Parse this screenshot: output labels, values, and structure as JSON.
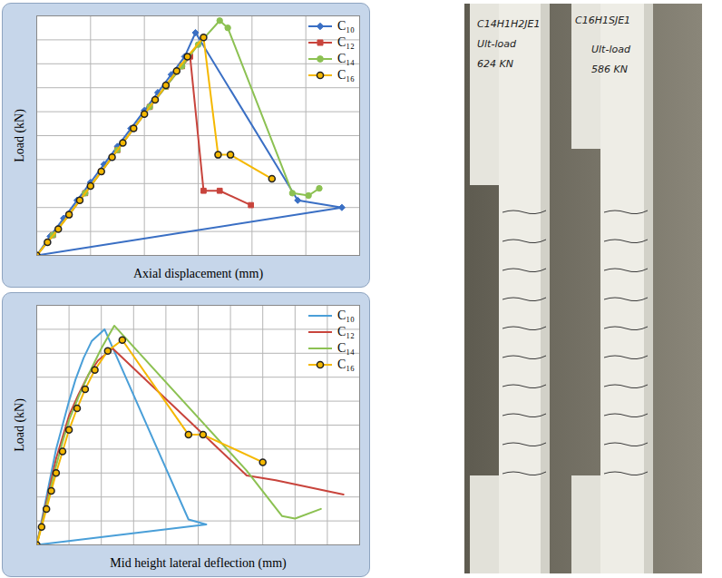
{
  "chart_data": [
    {
      "type": "line",
      "x_label": "Axial displacement (mm)",
      "y_label": "Load (kN)",
      "xlim": [
        0,
        6
      ],
      "ylim": [
        0,
        10
      ],
      "xticks": [
        0,
        1,
        2,
        3,
        4,
        5,
        6
      ],
      "yticks": [
        0,
        1,
        2,
        3,
        4,
        5,
        6,
        7,
        8,
        9,
        10
      ],
      "grid": true,
      "tick_labels": false,
      "legend": "top-right",
      "series": [
        {
          "name": "C₁₀",
          "color": "#3a6fc4",
          "marker": "diamond",
          "x": [
            0,
            0.25,
            0.5,
            0.75,
            1.0,
            1.25,
            1.5,
            1.75,
            2.0,
            2.25,
            2.5,
            2.75,
            2.95,
            4.85,
            5.67,
            0
          ],
          "values": [
            0,
            0.8,
            1.55,
            2.3,
            3.05,
            3.8,
            4.55,
            5.3,
            6.05,
            6.8,
            7.55,
            8.3,
            9.3,
            2.3,
            2.0,
            0
          ]
        },
        {
          "name": "C₁₂",
          "color": "#c8443c",
          "marker": "square",
          "x": [
            0,
            0.3,
            0.6,
            0.9,
            1.2,
            1.5,
            1.8,
            2.1,
            2.4,
            2.7,
            2.85,
            3.1,
            3.4,
            3.98
          ],
          "values": [
            0,
            0.85,
            1.7,
            2.6,
            3.5,
            4.4,
            5.3,
            6.2,
            7.05,
            7.9,
            8.3,
            2.7,
            2.7,
            2.1
          ]
        },
        {
          "name": "C₁₄",
          "color": "#8cc152",
          "marker": "circle",
          "x": [
            0,
            0.3,
            0.6,
            0.9,
            1.2,
            1.5,
            1.8,
            2.1,
            2.4,
            2.7,
            3.0,
            3.4,
            3.55,
            4.75,
            5.05,
            5.25
          ],
          "values": [
            0,
            0.85,
            1.7,
            2.6,
            3.5,
            4.4,
            5.3,
            6.2,
            7.05,
            7.9,
            8.8,
            9.8,
            9.5,
            2.6,
            2.5,
            2.8
          ]
        },
        {
          "name": "C₁₆",
          "color": "#f5b800",
          "marker": "ringed_circle",
          "x": [
            0,
            0.2,
            0.4,
            0.6,
            0.8,
            1.0,
            1.2,
            1.4,
            1.6,
            1.8,
            2.0,
            2.2,
            2.4,
            2.6,
            2.8,
            3.1,
            3.37,
            3.6,
            4.37
          ],
          "values": [
            0,
            0.55,
            1.1,
            1.7,
            2.3,
            2.9,
            3.5,
            4.1,
            4.7,
            5.3,
            5.9,
            6.5,
            7.1,
            7.7,
            8.3,
            9.1,
            4.2,
            4.2,
            3.2
          ]
        }
      ]
    },
    {
      "type": "line",
      "x_label": "Mid height lateral deflection (mm)",
      "y_label": "Load (kN)",
      "xlim": [
        0,
        10
      ],
      "ylim": [
        0,
        10
      ],
      "xticks": [
        0,
        1,
        2,
        3,
        4,
        5,
        6,
        7,
        8,
        9,
        10
      ],
      "yticks": [
        0,
        1,
        2,
        3,
        4,
        5,
        6,
        7,
        8,
        9,
        10
      ],
      "grid": true,
      "tick_labels": false,
      "legend": "top-right",
      "series": [
        {
          "name": "C₁₀",
          "color": "#4a9fd8",
          "marker": "none",
          "x": [
            0,
            0.15,
            0.3,
            0.45,
            0.6,
            0.8,
            1.0,
            1.2,
            1.45,
            1.7,
            2.1,
            4.7,
            5.25,
            0
          ],
          "values": [
            0,
            1,
            2,
            3,
            4,
            5,
            6,
            6.9,
            7.8,
            8.5,
            9.0,
            1.06,
            0.85,
            0
          ]
        },
        {
          "name": "C₁₂",
          "color": "#c8443c",
          "marker": "none",
          "x": [
            0,
            0.15,
            0.3,
            0.45,
            0.6,
            0.8,
            1.0,
            1.3,
            1.6,
            1.9,
            2.35,
            6.5,
            7.4,
            9.5
          ],
          "values": [
            0,
            0.9,
            1.8,
            2.7,
            3.6,
            4.5,
            5.4,
            6.3,
            7.1,
            7.7,
            8.2,
            2.9,
            2.7,
            2.1
          ]
        },
        {
          "name": "C₁₄",
          "color": "#8cc152",
          "marker": "none",
          "x": [
            0,
            0.2,
            0.4,
            0.6,
            0.8,
            1.0,
            1.3,
            1.6,
            2.0,
            2.4,
            6.5,
            7.6,
            8.0,
            8.8
          ],
          "values": [
            0,
            1.1,
            2.2,
            3.3,
            4.3,
            5.2,
            6.2,
            7.1,
            8.2,
            9.15,
            3.1,
            1.2,
            1.1,
            1.5
          ]
        },
        {
          "name": "C₁₆",
          "color": "#f5b800",
          "marker": "ringed_circle",
          "x": [
            0,
            0.15,
            0.3,
            0.45,
            0.6,
            0.8,
            1.0,
            1.25,
            1.5,
            1.8,
            2.2,
            2.65,
            4.7,
            5.15,
            7.0
          ],
          "values": [
            0,
            0.75,
            1.5,
            2.25,
            3.0,
            3.9,
            4.8,
            5.7,
            6.5,
            7.3,
            8.1,
            8.55,
            4.6,
            4.6,
            3.45
          ]
        }
      ]
    }
  ],
  "photos": [
    {
      "lines": [
        "C14H1H2JE1",
        "Ult-load",
        "624 KN"
      ]
    },
    {
      "lines": [
        "C16H1SJE1",
        "Ult-load",
        "586 KN"
      ]
    }
  ]
}
